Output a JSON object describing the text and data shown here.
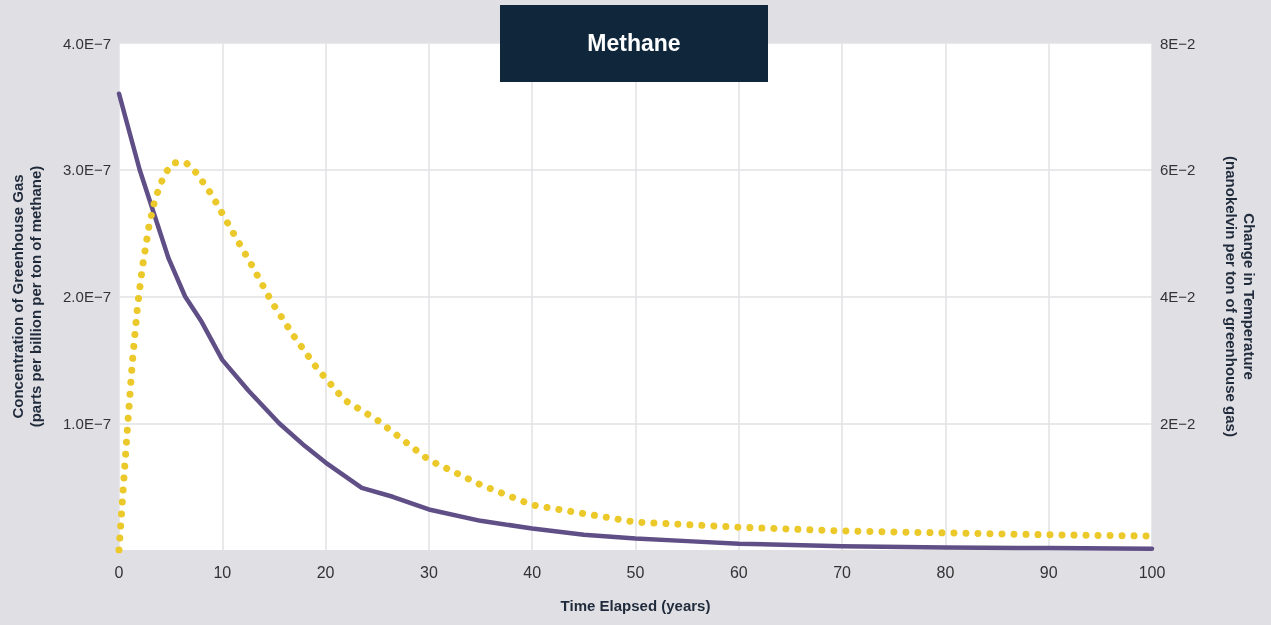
{
  "chart_data": {
    "type": "line",
    "title": "Methane",
    "xlabel": "Time Elapsed (years)",
    "ylabel": "Concentration of Greenhouse Gas\n(parts per billion per ton of methane)",
    "y2label": "Change in Temperature\n(nanokelvin per ton of greenhouse gas)",
    "xlim": [
      0,
      100
    ],
    "xticks": [
      0,
      10,
      20,
      30,
      40,
      50,
      60,
      70,
      80,
      90,
      100
    ],
    "ylim": [
      0,
      4e-07
    ],
    "yticks": [
      {
        "value": 1e-07,
        "label": "1.0E−7"
      },
      {
        "value": 2e-07,
        "label": "2.0E−7"
      },
      {
        "value": 3e-07,
        "label": "3.0E−7"
      },
      {
        "value": 4e-07,
        "label": "4.0E−7"
      }
    ],
    "y2lim": [
      0,
      0.08
    ],
    "y2ticks": [
      {
        "value": 0.02,
        "label": "2E−2"
      },
      {
        "value": 0.04,
        "label": "4E−2"
      },
      {
        "value": 0.06,
        "label": "6E−2"
      },
      {
        "value": 0.08,
        "label": "8E−2"
      }
    ],
    "grid": true,
    "series": [
      {
        "color": "#5f4f86",
        "line_style": "solid",
        "x": [
          0,
          1,
          2,
          3.2,
          4.8,
          6.4,
          8,
          10,
          12.5,
          15.5,
          18,
          20,
          23.5,
          26.5,
          30,
          35,
          40,
          45,
          50,
          55,
          60,
          70,
          80,
          90,
          100
        ],
        "values": [
          3.6e-07,
          3.3e-07,
          3e-07,
          2.7e-07,
          2.3e-07,
          2e-07,
          1.8e-07,
          1.5e-07,
          1.26e-07,
          1e-07,
          8.2e-08,
          6.9e-08,
          4.9e-08,
          4.2e-08,
          3.2e-08,
          2.3e-08,
          1.7e-08,
          1.2e-08,
          9e-09,
          7e-09,
          5e-09,
          3e-09,
          2e-09,
          1.5e-09,
          1e-09
        ]
      },
      {
        "color": "#ecc92a",
        "line_style": "dotted",
        "axis": "y2",
        "x": [
          0,
          0.53,
          0.82,
          1.3,
          1.79,
          2.27,
          2.9,
          3.5,
          4.4,
          5.26,
          6.5,
          7.5,
          9,
          10.96,
          12.9,
          14.8,
          16.9,
          19.2,
          21.8,
          25,
          30,
          35,
          40,
          50,
          60,
          70,
          80,
          90,
          100
        ],
        "values": [
          0,
          0.0126,
          0.0193,
          0.0298,
          0.0384,
          0.0447,
          0.0511,
          0.0554,
          0.0593,
          0.0611,
          0.0611,
          0.0595,
          0.056,
          0.0503,
          0.0448,
          0.0391,
          0.0338,
          0.0286,
          0.0237,
          0.0205,
          0.0142,
          0.0103,
          0.0071,
          0.0044,
          0.0036,
          0.003,
          0.0027,
          0.0024,
          0.0022
        ]
      }
    ]
  }
}
